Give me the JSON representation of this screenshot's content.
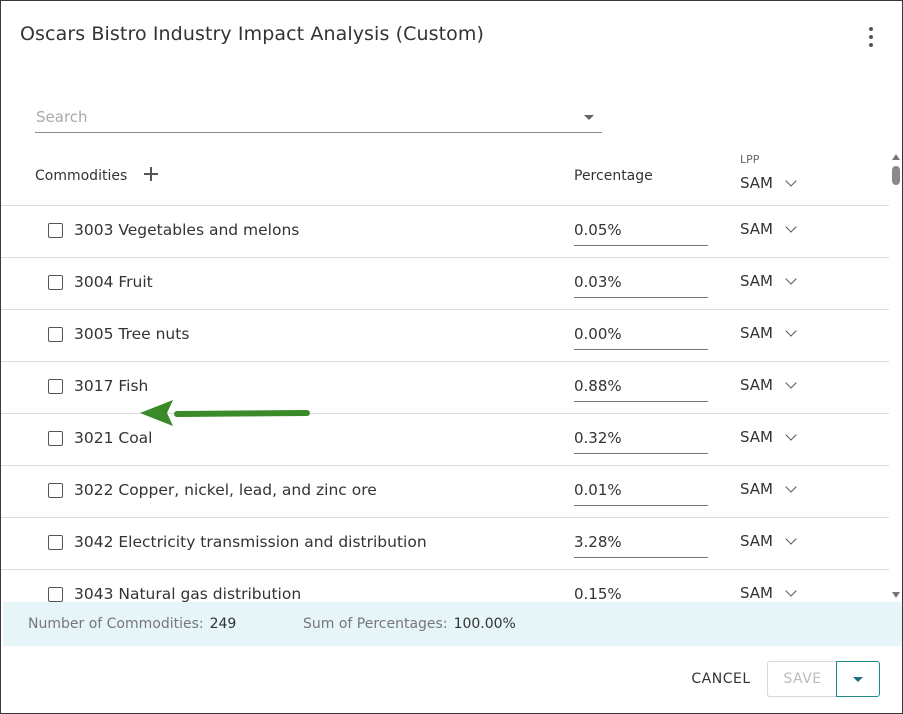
{
  "dialog": {
    "title": "Oscars Bistro Industry Impact Analysis (Custom)"
  },
  "search": {
    "placeholder": "Search",
    "value": ""
  },
  "table": {
    "headers": {
      "commodities": "Commodities",
      "percentage": "Percentage",
      "lpp_label": "LPP",
      "lpp_value": "SAM"
    },
    "rows": [
      {
        "name": "3003 Vegetables and melons",
        "percentage": "0.05%",
        "lpp": "SAM"
      },
      {
        "name": "3004 Fruit",
        "percentage": "0.03%",
        "lpp": "SAM"
      },
      {
        "name": "3005 Tree nuts",
        "percentage": "0.00%",
        "lpp": "SAM"
      },
      {
        "name": "3017 Fish",
        "percentage": "0.88%",
        "lpp": "SAM"
      },
      {
        "name": "3021 Coal",
        "percentage": "0.32%",
        "lpp": "SAM"
      },
      {
        "name": "3022 Copper, nickel, lead, and zinc ore",
        "percentage": "0.01%",
        "lpp": "SAM"
      },
      {
        "name": "3042 Electricity transmission and distribution",
        "percentage": "3.28%",
        "lpp": "SAM"
      },
      {
        "name": "3043 Natural gas distribution",
        "percentage": "0.15%",
        "lpp": "SAM"
      }
    ]
  },
  "summary": {
    "count_label": "Number of Commodities:",
    "count_value": "249",
    "sum_label": "Sum of Percentages:",
    "sum_value": "100.00%"
  },
  "actions": {
    "cancel": "CANCEL",
    "save": "SAVE"
  },
  "icons": {
    "menu": "kebab-menu-icon",
    "add": "plus-icon",
    "dropdown": "chevron-down-icon",
    "annotation": "arrow-left-icon"
  },
  "colors": {
    "accent": "#1f8a8a",
    "summary_bg": "#e5f5f8",
    "annotation_arrow": "#3a8a2a"
  }
}
